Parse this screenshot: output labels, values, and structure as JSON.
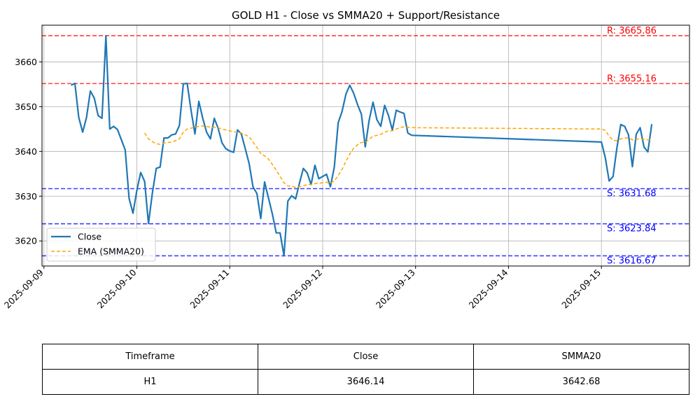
{
  "chart_data": {
    "type": "line",
    "title": "GOLD H1 - Close vs SMMA20 + Support/Resistance",
    "xlabel": "",
    "ylabel": "",
    "x_tick_labels": [
      "2025-09-09",
      "2025-09-10",
      "2025-09-11",
      "2025-09-12",
      "2025-09-13",
      "2025-09-14",
      "2025-09-15"
    ],
    "xlim": [
      "2025-09-08T23:30",
      "2025-09-15T22:45"
    ],
    "ylim": [
      3614.4,
      3668.2
    ],
    "y_ticks": [
      3620,
      3630,
      3640,
      3650,
      3660
    ],
    "grid": true,
    "legend_position": "lower-left",
    "series": [
      {
        "name": "Close",
        "color": "#1f77b4",
        "style": "solid",
        "points": [
          [
            "2025-09-09T07:00",
            3654.8
          ],
          [
            "2025-09-09T08:00",
            3655.2
          ],
          [
            "2025-09-09T09:00",
            3647.6
          ],
          [
            "2025-09-09T10:00",
            3644.3
          ],
          [
            "2025-09-09T11:00",
            3647.6
          ],
          [
            "2025-09-09T12:00",
            3653.5
          ],
          [
            "2025-09-09T13:00",
            3651.9
          ],
          [
            "2025-09-09T14:00",
            3648.0
          ],
          [
            "2025-09-09T15:00",
            3647.4
          ],
          [
            "2025-09-09T16:00",
            3665.8
          ],
          [
            "2025-09-09T17:00",
            3645.0
          ],
          [
            "2025-09-09T18:00",
            3645.6
          ],
          [
            "2025-09-09T19:00",
            3644.9
          ],
          [
            "2025-09-09T20:00",
            3642.6
          ],
          [
            "2025-09-09T21:00",
            3640.3
          ],
          [
            "2025-09-09T22:00",
            3629.5
          ],
          [
            "2025-09-09T23:00",
            3626.2
          ],
          [
            "2025-09-10T00:00",
            3631.3
          ],
          [
            "2025-09-10T01:00",
            3635.3
          ],
          [
            "2025-09-10T02:00",
            3633.3
          ],
          [
            "2025-09-10T03:00",
            3623.9
          ],
          [
            "2025-09-10T04:00",
            3630.6
          ],
          [
            "2025-09-10T05:00",
            3636.2
          ],
          [
            "2025-09-10T06:00",
            3636.5
          ],
          [
            "2025-09-10T07:00",
            3643.0
          ],
          [
            "2025-09-10T08:00",
            3643.0
          ],
          [
            "2025-09-10T09:00",
            3643.7
          ],
          [
            "2025-09-10T10:00",
            3643.9
          ],
          [
            "2025-09-10T11:00",
            3645.8
          ],
          [
            "2025-09-10T12:00",
            3655.1
          ],
          [
            "2025-09-10T13:00",
            3655.2
          ],
          [
            "2025-09-10T14:00",
            3649.2
          ],
          [
            "2025-09-10T15:00",
            3643.9
          ],
          [
            "2025-09-10T16:00",
            3651.2
          ],
          [
            "2025-09-10T17:00",
            3647.5
          ],
          [
            "2025-09-10T18:00",
            3644.3
          ],
          [
            "2025-09-10T19:00",
            3642.8
          ],
          [
            "2025-09-10T20:00",
            3647.4
          ],
          [
            "2025-09-10T21:00",
            3645.2
          ],
          [
            "2025-09-10T22:00",
            3641.9
          ],
          [
            "2025-09-10T23:00",
            3640.6
          ],
          [
            "2025-09-11T00:00",
            3640.1
          ],
          [
            "2025-09-11T01:00",
            3639.8
          ],
          [
            "2025-09-11T02:00",
            3644.8
          ],
          [
            "2025-09-11T03:00",
            3643.9
          ],
          [
            "2025-09-11T04:00",
            3640.6
          ],
          [
            "2025-09-11T05:00",
            3637.3
          ],
          [
            "2025-09-11T06:00",
            3632.1
          ],
          [
            "2025-09-11T07:00",
            3630.6
          ],
          [
            "2025-09-11T08:00",
            3625.0
          ],
          [
            "2025-09-11T09:00",
            3633.2
          ],
          [
            "2025-09-11T10:00",
            3629.6
          ],
          [
            "2025-09-11T11:00",
            3626.0
          ],
          [
            "2025-09-11T12:00",
            3621.8
          ],
          [
            "2025-09-11T13:00",
            3621.8
          ],
          [
            "2025-09-11T14:00",
            3616.7
          ],
          [
            "2025-09-11T15:00",
            3628.9
          ],
          [
            "2025-09-11T16:00",
            3630.1
          ],
          [
            "2025-09-11T17:00",
            3629.4
          ],
          [
            "2025-09-11T18:00",
            3632.9
          ],
          [
            "2025-09-11T19:00",
            3636.2
          ],
          [
            "2025-09-11T20:00",
            3635.2
          ],
          [
            "2025-09-11T21:00",
            3632.6
          ],
          [
            "2025-09-11T22:00",
            3636.9
          ],
          [
            "2025-09-11T23:00",
            3633.9
          ],
          [
            "2025-09-12T00:00",
            3634.4
          ],
          [
            "2025-09-12T01:00",
            3634.9
          ],
          [
            "2025-09-12T02:00",
            3632.1
          ],
          [
            "2025-09-12T03:00",
            3636.5
          ],
          [
            "2025-09-12T04:00",
            3646.4
          ],
          [
            "2025-09-12T05:00",
            3648.9
          ],
          [
            "2025-09-12T06:00",
            3652.8
          ],
          [
            "2025-09-12T07:00",
            3654.8
          ],
          [
            "2025-09-12T08:00",
            3653.0
          ],
          [
            "2025-09-12T09:00",
            3650.5
          ],
          [
            "2025-09-12T10:00",
            3648.3
          ],
          [
            "2025-09-12T11:00",
            3641.0
          ],
          [
            "2025-09-12T12:00",
            3646.9
          ],
          [
            "2025-09-12T13:00",
            3651.0
          ],
          [
            "2025-09-12T14:00",
            3647.1
          ],
          [
            "2025-09-12T15:00",
            3645.6
          ],
          [
            "2025-09-12T16:00",
            3650.3
          ],
          [
            "2025-09-12T17:00",
            3648.0
          ],
          [
            "2025-09-12T18:00",
            3644.8
          ],
          [
            "2025-09-12T19:00",
            3649.2
          ],
          [
            "2025-09-12T20:00",
            3648.8
          ],
          [
            "2025-09-12T21:00",
            3648.5
          ],
          [
            "2025-09-12T22:00",
            3644.1
          ],
          [
            "2025-09-12T23:00",
            3643.6
          ],
          [
            "2025-09-15T00:00",
            3642.1
          ],
          [
            "2025-09-15T01:00",
            3638.6
          ],
          [
            "2025-09-15T02:00",
            3633.4
          ],
          [
            "2025-09-15T03:00",
            3634.4
          ],
          [
            "2025-09-15T04:00",
            3640.8
          ],
          [
            "2025-09-15T05:00",
            3646.0
          ],
          [
            "2025-09-15T06:00",
            3645.6
          ],
          [
            "2025-09-15T07:00",
            3643.7
          ],
          [
            "2025-09-15T08:00",
            3636.6
          ],
          [
            "2025-09-15T09:00",
            3643.9
          ],
          [
            "2025-09-15T10:00",
            3645.3
          ],
          [
            "2025-09-15T11:00",
            3641.0
          ],
          [
            "2025-09-15T12:00",
            3639.9
          ],
          [
            "2025-09-15T13:00",
            3646.1
          ]
        ]
      },
      {
        "name": "EMA (SMMA20)",
        "color": "#ffa500",
        "style": "dashed",
        "points": [
          [
            "2025-09-10T02:00",
            3644.1
          ],
          [
            "2025-09-10T03:00",
            3642.8
          ],
          [
            "2025-09-10T04:00",
            3642.2
          ],
          [
            "2025-09-10T05:00",
            3641.7
          ],
          [
            "2025-09-10T06:00",
            3641.6
          ],
          [
            "2025-09-10T07:00",
            3641.9
          ],
          [
            "2025-09-10T08:00",
            3642.0
          ],
          [
            "2025-09-10T09:00",
            3642.1
          ],
          [
            "2025-09-10T10:00",
            3642.4
          ],
          [
            "2025-09-10T11:00",
            3642.8
          ],
          [
            "2025-09-10T12:00",
            3644.3
          ],
          [
            "2025-09-10T13:00",
            3645.0
          ],
          [
            "2025-09-10T14:00",
            3645.2
          ],
          [
            "2025-09-10T15:00",
            3645.4
          ],
          [
            "2025-09-10T16:00",
            3645.6
          ],
          [
            "2025-09-10T17:00",
            3645.7
          ],
          [
            "2025-09-10T18:00",
            3645.6
          ],
          [
            "2025-09-10T19:00",
            3645.4
          ],
          [
            "2025-09-10T20:00",
            3645.4
          ],
          [
            "2025-09-10T21:00",
            3645.3
          ],
          [
            "2025-09-10T22:00",
            3645.0
          ],
          [
            "2025-09-10T23:00",
            3644.8
          ],
          [
            "2025-09-11T00:00",
            3644.6
          ],
          [
            "2025-09-11T01:00",
            3644.4
          ],
          [
            "2025-09-11T02:00",
            3644.3
          ],
          [
            "2025-09-11T03:00",
            3644.1
          ],
          [
            "2025-09-11T04:00",
            3643.7
          ],
          [
            "2025-09-11T05:00",
            3643.3
          ],
          [
            "2025-09-11T06:00",
            3642.1
          ],
          [
            "2025-09-11T07:00",
            3640.9
          ],
          [
            "2025-09-11T08:00",
            3639.5
          ],
          [
            "2025-09-11T09:00",
            3639.0
          ],
          [
            "2025-09-11T10:00",
            3638.3
          ],
          [
            "2025-09-11T11:00",
            3637.1
          ],
          [
            "2025-09-11T12:00",
            3635.8
          ],
          [
            "2025-09-11T13:00",
            3634.4
          ],
          [
            "2025-09-11T14:00",
            3633.0
          ],
          [
            "2025-09-11T15:00",
            3632.3
          ],
          [
            "2025-09-11T16:00",
            3632.2
          ],
          [
            "2025-09-11T17:00",
            3632.0
          ],
          [
            "2025-09-11T18:00",
            3632.1
          ],
          [
            "2025-09-11T19:00",
            3632.3
          ],
          [
            "2025-09-11T20:00",
            3632.6
          ],
          [
            "2025-09-11T21:00",
            3632.6
          ],
          [
            "2025-09-11T22:00",
            3632.8
          ],
          [
            "2025-09-11T23:00",
            3632.9
          ],
          [
            "2025-09-12T00:00",
            3633.0
          ],
          [
            "2025-09-12T01:00",
            3633.1
          ],
          [
            "2025-09-12T02:00",
            3632.9
          ],
          [
            "2025-09-12T03:00",
            3633.4
          ],
          [
            "2025-09-12T04:00",
            3634.6
          ],
          [
            "2025-09-12T05:00",
            3636.0
          ],
          [
            "2025-09-12T06:00",
            3637.8
          ],
          [
            "2025-09-12T07:00",
            3639.4
          ],
          [
            "2025-09-12T08:00",
            3640.7
          ],
          [
            "2025-09-12T09:00",
            3641.5
          ],
          [
            "2025-09-12T10:00",
            3642.0
          ],
          [
            "2025-09-12T11:00",
            3642.0
          ],
          [
            "2025-09-12T12:00",
            3642.7
          ],
          [
            "2025-09-12T13:00",
            3643.4
          ],
          [
            "2025-09-12T14:00",
            3643.6
          ],
          [
            "2025-09-12T15:00",
            3643.8
          ],
          [
            "2025-09-12T16:00",
            3644.3
          ],
          [
            "2025-09-12T17:00",
            3644.6
          ],
          [
            "2025-09-12T18:00",
            3644.6
          ],
          [
            "2025-09-12T19:00",
            3645.0
          ],
          [
            "2025-09-12T20:00",
            3645.3
          ],
          [
            "2025-09-12T21:00",
            3645.5
          ],
          [
            "2025-09-12T22:00",
            3645.4
          ],
          [
            "2025-09-12T23:00",
            3645.3
          ],
          [
            "2025-09-15T00:00",
            3645.0
          ],
          [
            "2025-09-15T01:00",
            3644.7
          ],
          [
            "2025-09-15T02:00",
            3643.4
          ],
          [
            "2025-09-15T03:00",
            3642.5
          ],
          [
            "2025-09-15T04:00",
            3642.4
          ],
          [
            "2025-09-15T05:00",
            3642.8
          ],
          [
            "2025-09-15T06:00",
            3643.0
          ],
          [
            "2025-09-15T07:00",
            3643.0
          ],
          [
            "2025-09-15T08:00",
            3642.6
          ],
          [
            "2025-09-15T09:00",
            3642.7
          ],
          [
            "2025-09-15T10:00",
            3642.8
          ],
          [
            "2025-09-15T11:00",
            3642.7
          ],
          [
            "2025-09-15T12:00",
            3642.6
          ],
          [
            "2025-09-15T13:00",
            3642.7
          ]
        ]
      }
    ],
    "levels": [
      {
        "kind": "resistance",
        "value": 3665.86,
        "label": "R: 3665.86",
        "color": "#ff0000"
      },
      {
        "kind": "resistance",
        "value": 3655.16,
        "label": "R: 3655.16",
        "color": "#ff0000"
      },
      {
        "kind": "support",
        "value": 3631.68,
        "label": "S: 3631.68",
        "color": "#0000ff"
      },
      {
        "kind": "support",
        "value": 3623.84,
        "label": "S: 3623.84",
        "color": "#0000ff"
      },
      {
        "kind": "support",
        "value": 3616.67,
        "label": "S: 3616.67",
        "color": "#0000ff"
      }
    ]
  },
  "summary_table": {
    "headers": [
      "Timeframe",
      "Close",
      "SMMA20"
    ],
    "row": [
      "H1",
      "3646.14",
      "3642.68"
    ]
  }
}
